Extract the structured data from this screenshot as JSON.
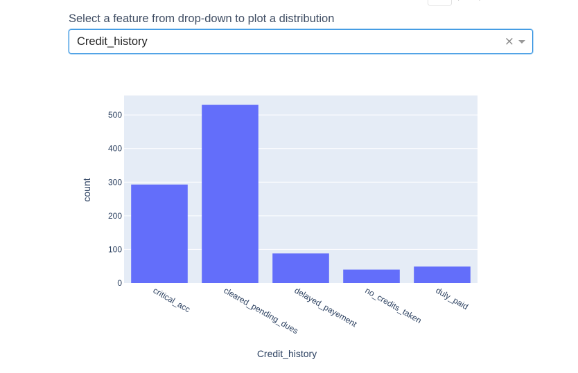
{
  "dropdown": {
    "label": "Select a feature from drop-down to plot a distribution",
    "selected": "Credit_history",
    "clear_icon": "×",
    "arrow_icon": "chevron-down-icon"
  },
  "colors": {
    "bar": "#636efa",
    "plot_bg": "#e5ecf6",
    "grid": "#ffffff",
    "dropdown_border": "#2b8ee0"
  },
  "chart_data": {
    "type": "bar",
    "title": "",
    "xlabel": "Credit_history",
    "ylabel": "count",
    "categories": [
      "critical_acc",
      "cleared_pending_dues",
      "delayed_payement",
      "no_credits_taken",
      "duly_paid"
    ],
    "values": [
      293,
      530,
      88,
      40,
      49
    ],
    "ylim": [
      0,
      557.9
    ],
    "yticks": [
      0,
      100,
      200,
      300,
      400,
      500
    ],
    "grid": true,
    "legend": "none"
  }
}
